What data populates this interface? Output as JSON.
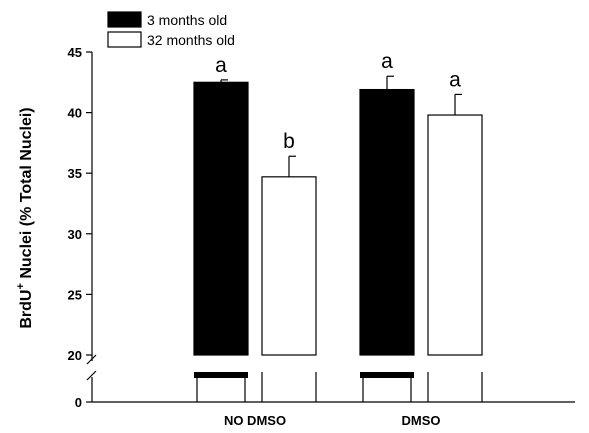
{
  "chart_data": {
    "type": "bar",
    "categories": [
      "NO DMSO",
      "DMSO"
    ],
    "series": [
      {
        "name": "3 months old",
        "color": "#000000",
        "values": [
          42.5,
          41.9
        ],
        "errors": [
          0.2,
          1.1
        ],
        "significance": [
          "a",
          "a"
        ]
      },
      {
        "name": "32 months old",
        "color": "#ffffff",
        "values": [
          34.7,
          39.8
        ],
        "errors": [
          1.7,
          1.7
        ],
        "significance": [
          "b",
          "a"
        ]
      }
    ],
    "ylabel_main": "BrdU",
    "ylabel_sup": "+",
    "ylabel_rest": " Nuclei (% Total Nuclei)",
    "y_ticks": [
      "0",
      "20",
      "25",
      "30",
      "35",
      "40",
      "45"
    ],
    "ylim": [
      20,
      45
    ],
    "axis_break": [
      0,
      20
    ],
    "legend_position": "top-left",
    "grid": false
  }
}
